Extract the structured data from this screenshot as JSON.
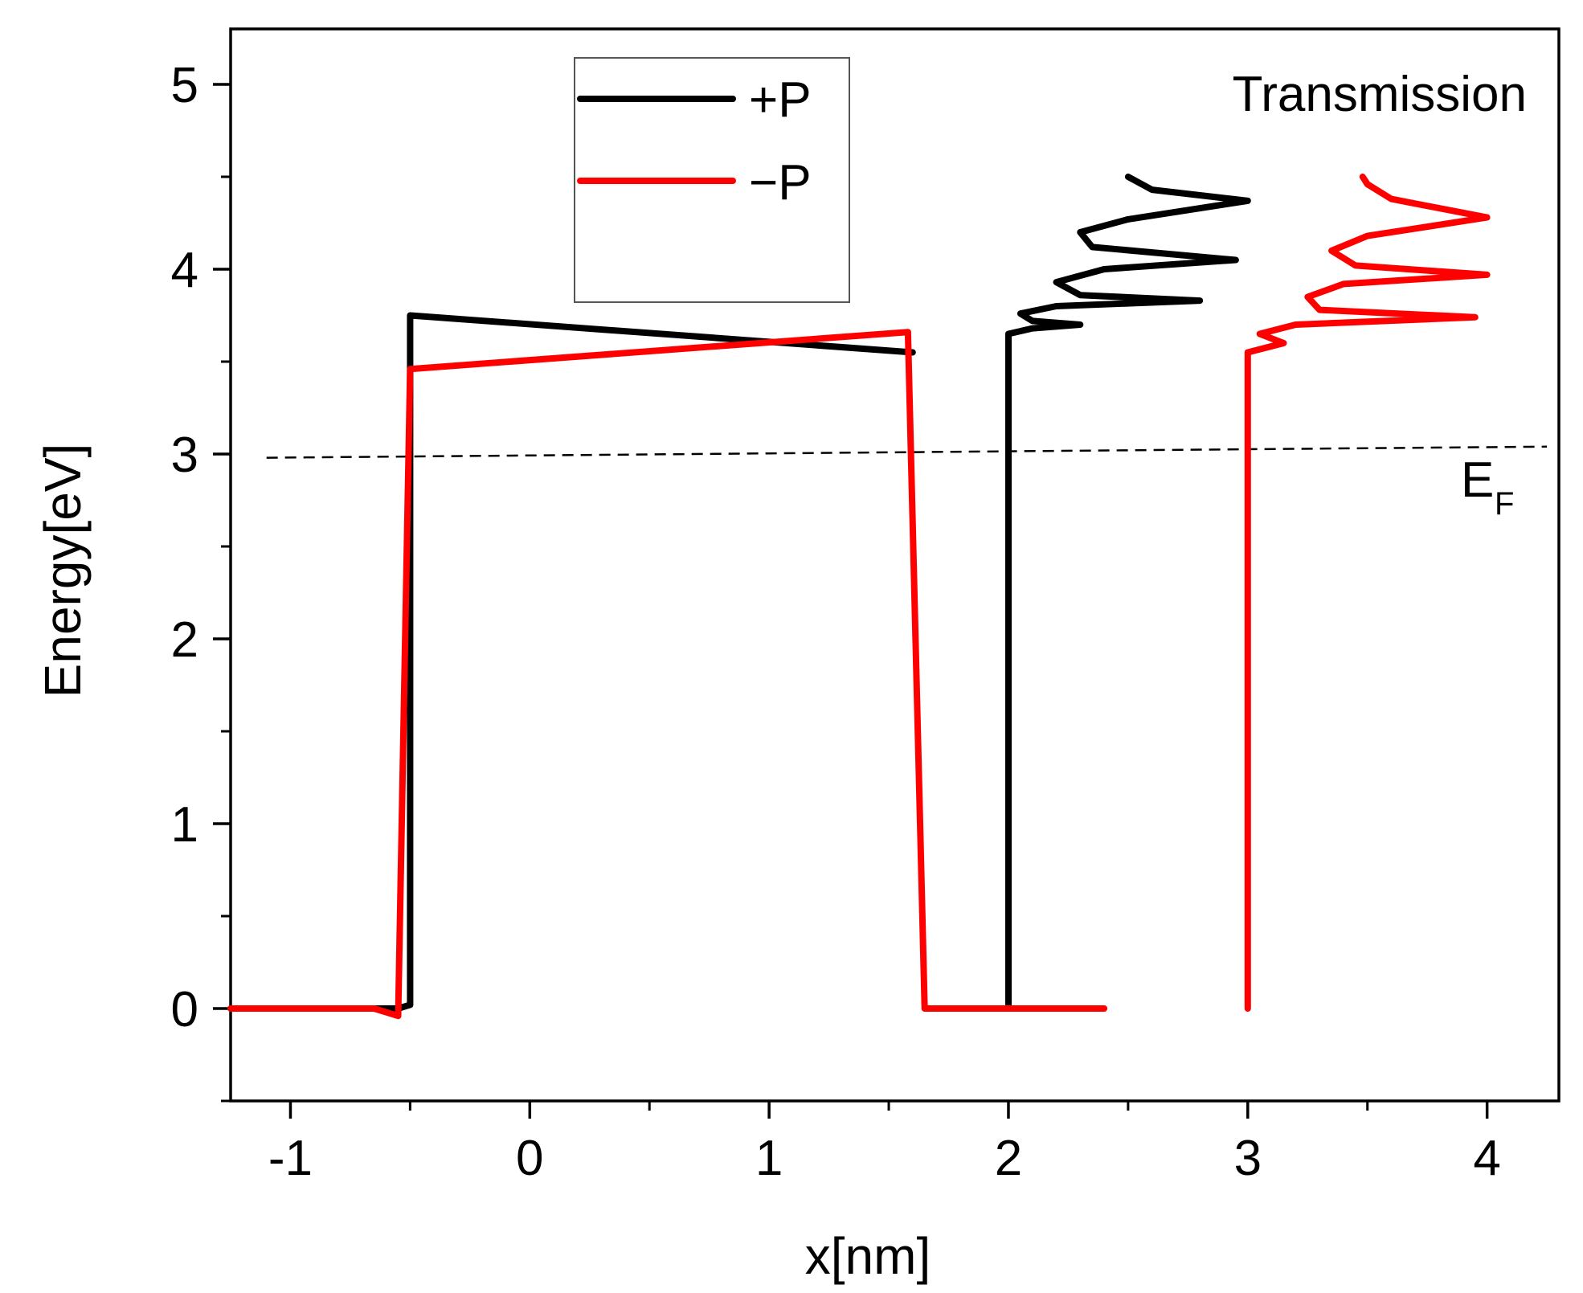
{
  "chart_data": {
    "type": "line",
    "title": "",
    "xlabel": "x[nm]",
    "ylabel": "Energy[eV]",
    "xlim": [
      -1.25,
      4.3
    ],
    "ylim": [
      -0.5,
      5.3
    ],
    "xticks": [
      -1,
      0,
      1,
      2,
      3,
      4
    ],
    "xtick_labels": [
      "-1",
      "0",
      "1",
      "2",
      "3",
      "4"
    ],
    "yticks": [
      0,
      1,
      2,
      3,
      4,
      5
    ],
    "ytick_labels": [
      "0",
      "1",
      "2",
      "3",
      "4",
      "5"
    ],
    "grid": false,
    "legend_position": "top-center",
    "annotation_transmission": "Transmission",
    "fermi_label": "E",
    "fermi_subscript": "F",
    "fermi_level": {
      "x": [
        -1.1,
        4.25
      ],
      "y": [
        2.98,
        3.04
      ]
    },
    "series": [
      {
        "name": "+P",
        "legend_label": "+P",
        "color": "#000000",
        "segments": [
          {
            "role": "band",
            "points": [
              [
                -1.25,
                0
              ],
              [
                -0.55,
                0
              ],
              [
                -0.5,
                0.02
              ],
              [
                -0.5,
                3.75
              ],
              [
                1.6,
                3.55
              ]
            ]
          },
          {
            "role": "transmission",
            "points": [
              [
                2.0,
                0
              ],
              [
                2.0,
                3.65
              ],
              [
                2.1,
                3.68
              ],
              [
                2.3,
                3.7
              ],
              [
                2.1,
                3.72
              ],
              [
                2.05,
                3.76
              ],
              [
                2.2,
                3.8
              ],
              [
                2.8,
                3.83
              ],
              [
                2.3,
                3.86
              ],
              [
                2.2,
                3.93
              ],
              [
                2.4,
                4.0
              ],
              [
                2.95,
                4.05
              ],
              [
                2.35,
                4.12
              ],
              [
                2.3,
                4.2
              ],
              [
                2.5,
                4.27
              ],
              [
                3.0,
                4.37
              ],
              [
                2.6,
                4.43
              ],
              [
                2.5,
                4.5
              ]
            ]
          }
        ]
      },
      {
        "name": "-P",
        "legend_label": "−P",
        "color": "#ff0000",
        "segments": [
          {
            "role": "band",
            "points": [
              [
                -1.25,
                0
              ],
              [
                -0.65,
                0
              ],
              [
                -0.55,
                -0.04
              ],
              [
                -0.5,
                3.46
              ],
              [
                1.58,
                3.66
              ],
              [
                1.65,
                0
              ],
              [
                2.4,
                0
              ]
            ]
          },
          {
            "role": "transmission",
            "points": [
              [
                3.0,
                0
              ],
              [
                3.0,
                3.55
              ],
              [
                3.15,
                3.6
              ],
              [
                3.05,
                3.65
              ],
              [
                3.2,
                3.7
              ],
              [
                3.95,
                3.74
              ],
              [
                3.3,
                3.78
              ],
              [
                3.25,
                3.85
              ],
              [
                3.4,
                3.92
              ],
              [
                4.0,
                3.97
              ],
              [
                3.45,
                4.02
              ],
              [
                3.35,
                4.1
              ],
              [
                3.5,
                4.18
              ],
              [
                4.0,
                4.28
              ],
              [
                3.6,
                4.38
              ],
              [
                3.5,
                4.46
              ],
              [
                3.48,
                4.5
              ]
            ]
          }
        ]
      }
    ]
  }
}
